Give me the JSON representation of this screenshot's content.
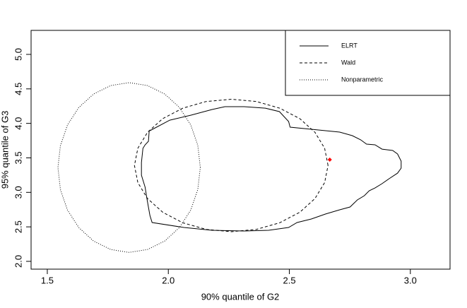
{
  "chart_data": {
    "type": "line",
    "xlabel": "90% quantile of G2",
    "ylabel": "95% quantile of G3",
    "xlim": [
      1.433,
      3.164
    ],
    "ylim": [
      1.887,
      5.348
    ],
    "xticks": [
      1.5,
      {
        "value": 2,
        "label": "2.0"
      },
      2.5,
      {
        "value": 3,
        "label": "3.0"
      }
    ],
    "yticks": [
      {
        "value": 2,
        "label": "2.0"
      },
      2.5,
      {
        "value": 3,
        "label": "3.0"
      },
      3.5,
      {
        "value": 4,
        "label": "4.0"
      },
      4.5,
      {
        "value": 5,
        "label": "5.0"
      }
    ],
    "legend": "topright",
    "series": [
      {
        "name": "ELRT",
        "color": "#000000",
        "linestyle": "solid",
        "x": [
          1.924,
          2.006,
          2.094,
          2.181,
          2.234,
          2.313,
          2.401,
          2.459,
          2.497,
          2.503,
          2.591,
          2.708,
          2.76,
          2.795,
          2.819,
          2.854,
          2.883,
          2.927,
          2.947,
          2.962,
          2.962,
          2.947,
          2.912,
          2.883,
          2.854,
          2.83,
          2.81,
          2.781,
          2.751,
          2.708,
          2.649,
          2.591,
          2.532,
          2.497,
          2.415,
          2.313,
          2.181,
          2.064,
          1.933,
          1.924,
          1.912,
          1.904,
          1.889,
          1.889,
          1.895,
          1.904,
          1.918,
          1.921,
          1.924
        ],
        "y": [
          3.894,
          4.047,
          4.119,
          4.201,
          4.242,
          4.242,
          4.221,
          4.17,
          4.027,
          3.945,
          3.914,
          3.873,
          3.822,
          3.761,
          3.699,
          3.689,
          3.627,
          3.607,
          3.556,
          3.453,
          3.351,
          3.279,
          3.198,
          3.126,
          3.064,
          3.024,
          2.952,
          2.89,
          2.788,
          2.747,
          2.686,
          2.614,
          2.563,
          2.491,
          2.45,
          2.44,
          2.45,
          2.491,
          2.563,
          2.665,
          2.901,
          3.075,
          3.249,
          3.433,
          3.638,
          3.689,
          3.74,
          3.894,
          3.894
        ]
      },
      {
        "name": "Wald",
        "color": "#000000",
        "linestyle": "dashed",
        "x": [
          2.66,
          2.646,
          2.606,
          2.543,
          2.46,
          2.364,
          2.26,
          2.156,
          2.06,
          1.977,
          1.914,
          1.874,
          1.86,
          1.874,
          1.914,
          1.977,
          2.06,
          2.156,
          2.26,
          2.364,
          2.46,
          2.543,
          2.606,
          2.646,
          2.66
        ],
        "y": [
          3.39,
          3.639,
          3.87,
          4.069,
          4.221,
          4.317,
          4.35,
          4.317,
          4.221,
          4.069,
          3.87,
          3.639,
          3.39,
          3.141,
          2.91,
          2.711,
          2.559,
          2.463,
          2.43,
          2.463,
          2.559,
          2.711,
          2.91,
          3.141,
          3.39
        ]
      },
      {
        "name": "Nonparametric",
        "color": "#000000",
        "linestyle": "dotted",
        "x": [
          2.132,
          2.122,
          2.093,
          2.046,
          1.985,
          1.914,
          1.838,
          1.762,
          1.691,
          1.63,
          1.583,
          1.554,
          1.544,
          1.554,
          1.583,
          1.63,
          1.691,
          1.762,
          1.838,
          1.914,
          1.985,
          2.046,
          2.093,
          2.122,
          2.132
        ],
        "y": [
          3.36,
          3.678,
          3.975,
          4.23,
          4.425,
          4.548,
          4.59,
          4.548,
          4.425,
          4.23,
          3.975,
          3.678,
          3.36,
          3.042,
          2.745,
          2.49,
          2.295,
          2.172,
          2.13,
          2.172,
          2.295,
          2.49,
          2.745,
          3.042,
          3.36
        ]
      }
    ],
    "points": {
      "x": [
        2.667
      ],
      "y": [
        3.474
      ],
      "color": "#ff0000"
    }
  }
}
